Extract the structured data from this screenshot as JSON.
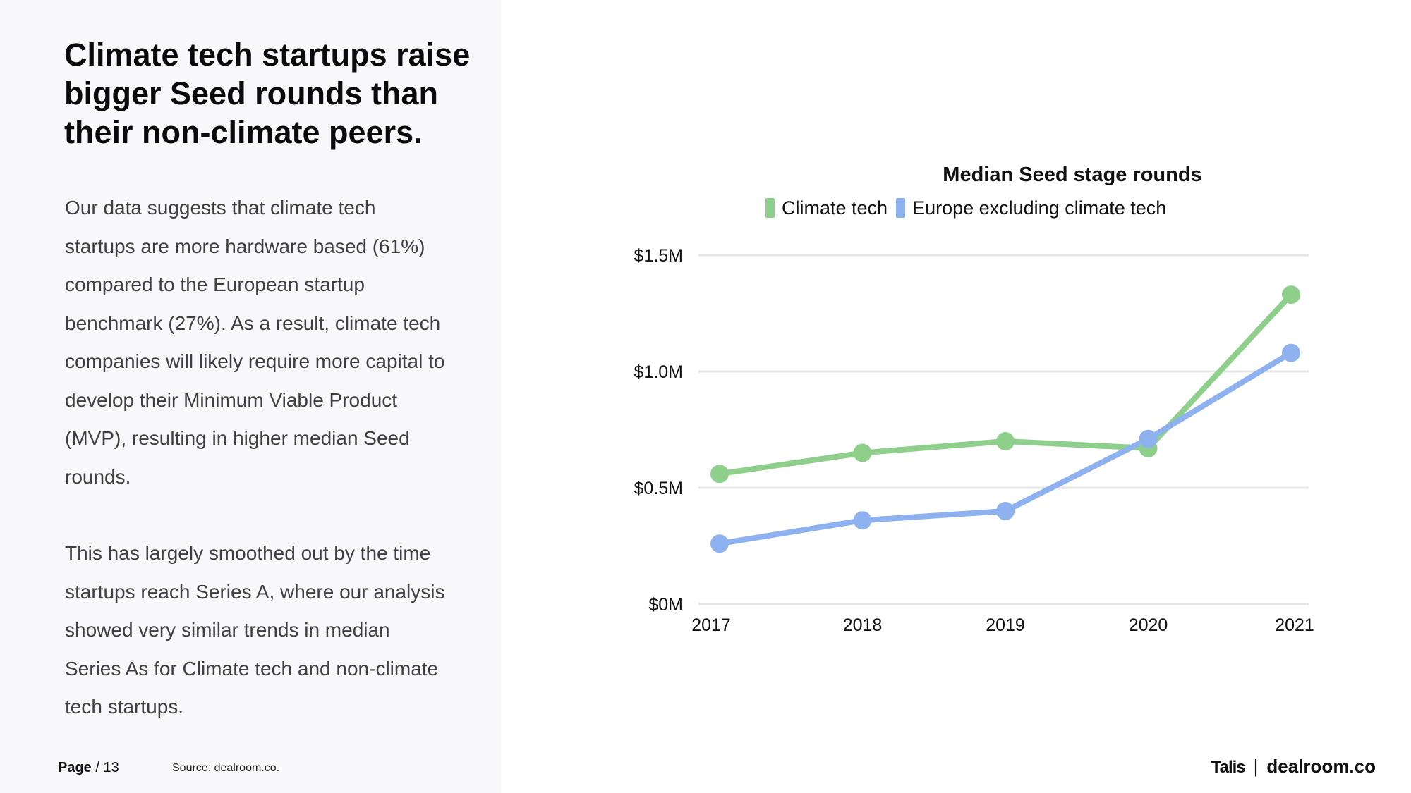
{
  "title": "Climate tech startups raise bigger Seed rounds than their non-climate peers.",
  "paragraphs": [
    "Our data suggests that climate tech startups are more hardware based (61%) compared to the European startup benchmark (27%). As a result, climate tech companies will likely require more capital to develop their Minimum Viable Product (MVP), resulting in higher median Seed rounds.",
    "This has largely smoothed out by the time startups reach Series A, where our analysis showed very similar trends in median Series As for Climate tech and non-climate tech startups."
  ],
  "footer": {
    "page_label": "Page",
    "page_number": "/ 13",
    "source": "Source: dealroom.co.",
    "brand_left": "Talis",
    "brand_separator": "|",
    "brand_right": "dealroom.co"
  },
  "colors": {
    "climate": "#8ed08b",
    "europe": "#8eb2f0",
    "gridline": "#e6e6e6"
  },
  "chart_data": {
    "type": "line",
    "title": "Median Seed stage rounds",
    "categories": [
      "2017",
      "2018",
      "2019",
      "2020",
      "2021"
    ],
    "series": [
      {
        "name": "Climate tech",
        "values": [
          0.56,
          0.65,
          0.7,
          0.67,
          1.33
        ]
      },
      {
        "name": "Europe excluding climate tech",
        "values": [
          0.26,
          0.36,
          0.4,
          0.71,
          1.08
        ]
      }
    ],
    "y_ticks": [
      {
        "value": 0,
        "label": "$0M"
      },
      {
        "value": 0.5,
        "label": "$0.5M"
      },
      {
        "value": 1.0,
        "label": "$1.0M"
      },
      {
        "value": 1.5,
        "label": "$1.5M"
      }
    ],
    "ylim": [
      0,
      1.5
    ],
    "xlabel": "",
    "ylabel": "",
    "grid": true,
    "legend_position": "top"
  }
}
